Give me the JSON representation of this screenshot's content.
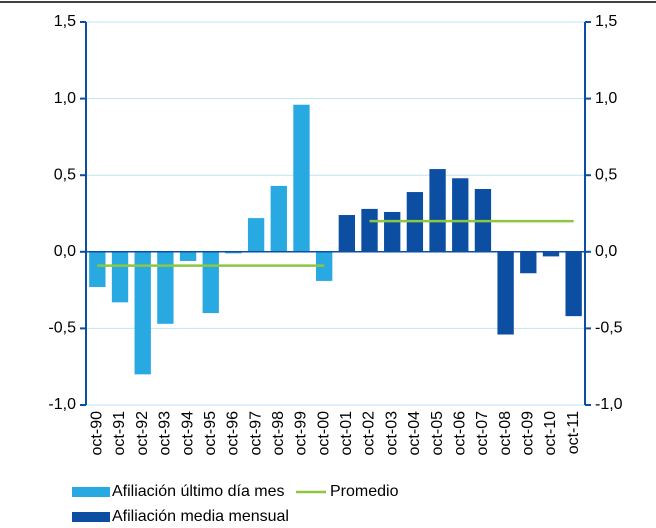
{
  "chart_data": {
    "type": "bar",
    "categories": [
      "oct-90",
      "oct-91",
      "oct-92",
      "oct-93",
      "oct-94",
      "oct-95",
      "oct-96",
      "oct-97",
      "oct-98",
      "oct-99",
      "oct-00",
      "oct-01",
      "oct-02",
      "oct-03",
      "oct-04",
      "oct-05",
      "oct-06",
      "oct-07",
      "oct-08",
      "oct-09",
      "oct-10",
      "oct-11"
    ],
    "series": [
      {
        "name": "Afiliación último día mes",
        "color": "#29a9e1",
        "type": "bar",
        "values": [
          -0.23,
          -0.33,
          -0.8,
          -0.47,
          -0.06,
          -0.4,
          -0.01,
          0.22,
          0.43,
          0.96,
          -0.19,
          null,
          null,
          null,
          null,
          null,
          null,
          null,
          null,
          null,
          null,
          null
        ]
      },
      {
        "name": "Afiliación media mensual",
        "color": "#0b4ea2",
        "type": "bar",
        "values": [
          null,
          null,
          null,
          null,
          null,
          null,
          null,
          null,
          null,
          null,
          null,
          0.24,
          0.28,
          0.26,
          0.39,
          0.54,
          0.48,
          0.41,
          -0.54,
          -0.14,
          -0.03,
          -0.42
        ]
      },
      {
        "name": "Promedio",
        "color": "#8dc63f",
        "type": "line",
        "values": [
          -0.09,
          -0.09,
          -0.09,
          -0.09,
          -0.09,
          -0.09,
          -0.09,
          -0.09,
          -0.09,
          -0.09,
          -0.09,
          null,
          0.2,
          0.2,
          0.2,
          0.2,
          0.2,
          0.2,
          0.2,
          0.2,
          0.2,
          0.2
        ]
      }
    ],
    "ylim": [
      -1.0,
      1.5
    ],
    "yticks": [
      {
        "value": -1.0,
        "label": "-1,0"
      },
      {
        "value": -0.5,
        "label": "-0,5"
      },
      {
        "value": 0,
        "label": "0,0"
      },
      {
        "value": 0.5,
        "label": "0,5"
      },
      {
        "value": 1.0,
        "label": "1,0"
      },
      {
        "value": 1.5,
        "label": "1,5"
      }
    ],
    "y2lim": [
      -1.0,
      1.5
    ],
    "y2ticks": [
      {
        "value": -1.0,
        "label": "-1,0"
      },
      {
        "value": -0.5,
        "label": "-0,5"
      },
      {
        "value": 0,
        "label": "0,0"
      },
      {
        "value": 0.5,
        "label": "0,5"
      },
      {
        "value": 1.0,
        "label": "1,0"
      },
      {
        "value": 1.5,
        "label": "1,5"
      }
    ],
    "grid": true
  }
}
